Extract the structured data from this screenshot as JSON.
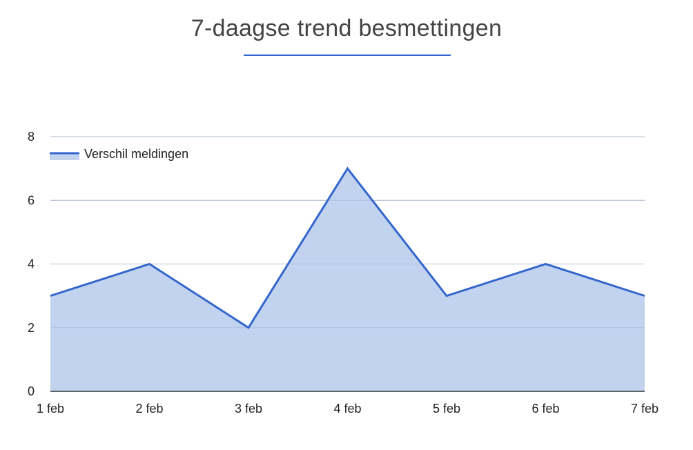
{
  "title": "7-daagse trend besmettingen",
  "chart_data": {
    "type": "area",
    "title": "7-daagse trend besmettingen",
    "categories": [
      "1 feb",
      "2 feb",
      "3 feb",
      "4 feb",
      "5 feb",
      "6 feb",
      "7 feb"
    ],
    "series": [
      {
        "name": "Verschil meldingen",
        "values": [
          3,
          4,
          2,
          7,
          3,
          4,
          3
        ]
      }
    ],
    "ylim": [
      0,
      8
    ],
    "yticks": [
      "0",
      "2",
      "4",
      "6",
      "8"
    ],
    "grid": true,
    "legend": "top-left",
    "colors": {
      "line": "#3366cc",
      "fill": "#c2d3f0",
      "grid": "#cccccc",
      "baseline": "#333333"
    }
  }
}
